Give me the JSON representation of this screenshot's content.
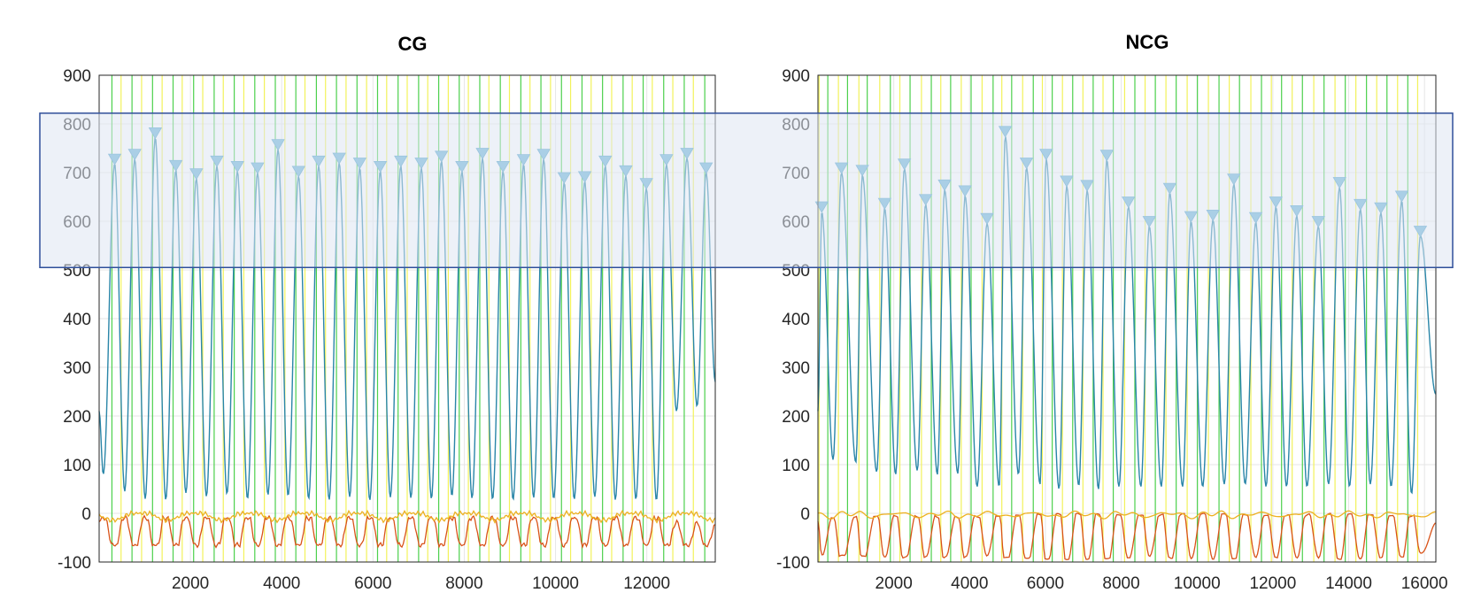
{
  "chart_data": [
    {
      "type": "line",
      "title": "CG",
      "xlabel": "",
      "ylabel": "",
      "xlim": [
        0,
        13500
      ],
      "ylim": [
        -100,
        900
      ],
      "xticks": [
        2000,
        4000,
        6000,
        8000,
        10000,
        12000
      ],
      "yticks": [
        -100,
        0,
        100,
        200,
        300,
        400,
        500,
        600,
        700,
        800,
        900
      ],
      "grid": true,
      "legend": "none",
      "peaks": {
        "x": [
          340,
          780,
          1230,
          1680,
          2130,
          2580,
          3030,
          3470,
          3920,
          4370,
          4810,
          5260,
          5710,
          6160,
          6610,
          7060,
          7500,
          7950,
          8400,
          8850,
          9300,
          9740,
          10190,
          10640,
          11090,
          11540,
          11990,
          12430,
          12880,
          13300
        ],
        "y": [
          718,
          728,
          772,
          705,
          688,
          714,
          703,
          700,
          748,
          693,
          714,
          720,
          710,
          703,
          714,
          710,
          724,
          703,
          730,
          703,
          717,
          728,
          680,
          682,
          714,
          694,
          668,
          717,
          730,
          700
        ]
      },
      "troughs": {
        "x": [
          90,
          560,
          1010,
          1460,
          1900,
          2350,
          2800,
          3250,
          3700,
          4140,
          4590,
          5040,
          5490,
          5930,
          6380,
          6830,
          7280,
          7730,
          8170,
          8620,
          9070,
          9520,
          9960,
          10410,
          10860,
          11310,
          11760,
          12210,
          12650,
          13100
        ],
        "y": [
          80,
          45,
          30,
          28,
          42,
          35,
          40,
          30,
          38,
          36,
          30,
          28,
          34,
          27,
          33,
          32,
          30,
          36,
          31,
          29,
          28,
          32,
          30,
          29,
          34,
          28,
          29,
          27,
          210,
          220
        ]
      },
      "end_value": 270,
      "secondary_series": [
        {
          "color": "#d95319",
          "baseline": -10,
          "min": -65
        },
        {
          "color": "#edb120",
          "baseline": 0,
          "min": -20
        }
      ],
      "event_markers": {
        "green_x": [
          280,
          720,
          1170,
          1620,
          2070,
          2520,
          2960,
          3410,
          3860,
          4310,
          4760,
          5200,
          5650,
          6100,
          6550,
          7000,
          7440,
          7890,
          8340,
          8790,
          9240,
          9680,
          10130,
          10580,
          11030,
          11480,
          11920,
          12370,
          12820,
          13270
        ],
        "yellow_x": [
          480,
          930,
          1380,
          1820,
          2270,
          2720,
          3170,
          3620,
          4070,
          4510,
          4960,
          5410,
          5860,
          6300,
          6750,
          7200,
          7650,
          8090,
          8540,
          8990,
          9440,
          9890,
          10330,
          10780,
          11230,
          11680,
          12120,
          12570,
          13020
        ]
      }
    },
    {
      "type": "line",
      "title": "NCG",
      "xlabel": "",
      "ylabel": "",
      "xlim": [
        0,
        16300
      ],
      "ylim": [
        -100,
        900
      ],
      "xticks": [
        2000,
        4000,
        6000,
        8000,
        10000,
        12000,
        14000,
        16000
      ],
      "yticks": [
        -100,
        0,
        100,
        200,
        300,
        400,
        500,
        600,
        700,
        800,
        900
      ],
      "grid": true,
      "legend": "none",
      "peaks": {
        "x": [
          100,
          620,
          1170,
          1760,
          2280,
          2840,
          3340,
          3880,
          4460,
          4940,
          5500,
          6020,
          6560,
          7100,
          7620,
          8190,
          8740,
          9280,
          9840,
          10420,
          10970,
          11550,
          12080,
          12630,
          13200,
          13760,
          14310,
          14850,
          15400,
          15890
        ],
        "y": [
          620,
          700,
          695,
          627,
          708,
          635,
          665,
          653,
          596,
          775,
          710,
          728,
          673,
          664,
          726,
          630,
          590,
          658,
          600,
          603,
          677,
          598,
          630,
          612,
          590,
          670,
          625,
          618,
          642,
          570
        ]
      },
      "troughs": {
        "x": [
          400,
          1000,
          1550,
          2050,
          2620,
          3150,
          3690,
          4200,
          4780,
          5290,
          5860,
          6360,
          6880,
          7400,
          7940,
          8520,
          9060,
          9620,
          10150,
          10720,
          11270,
          11820,
          12360,
          12900,
          13470,
          14020,
          14570,
          15120,
          15660
        ],
        "y": [
          110,
          105,
          85,
          80,
          88,
          80,
          82,
          55,
          55,
          80,
          60,
          50,
          57,
          50,
          55,
          55,
          55,
          55,
          55,
          60,
          60,
          55,
          55,
          55,
          60,
          55,
          60,
          55,
          40
        ]
      },
      "end_value": 245,
      "secondary_series": [
        {
          "color": "#d95319",
          "baseline": -5,
          "min": -90
        },
        {
          "color": "#edb120",
          "baseline": 0,
          "min": -10
        }
      ],
      "event_markers": {
        "green_x": [
          260,
          780,
          1300,
          1910,
          2430,
          2990,
          3500,
          4040,
          4620,
          5110,
          5680,
          6180,
          6720,
          7260,
          7790,
          8360,
          8900,
          9450,
          10010,
          10580,
          11120,
          11700,
          12230,
          12780,
          13350,
          13910,
          14470,
          15010,
          15560
        ],
        "yellow_x": [
          30,
          540,
          1080,
          1630,
          2160,
          2730,
          3240,
          3780,
          4330,
          4850,
          5400,
          5920,
          6450,
          6990,
          7520,
          8090,
          8630,
          9180,
          9740,
          10300,
          10850,
          11420,
          11960,
          12510,
          13080,
          13640,
          14190,
          14740,
          15290,
          15820
        ]
      }
    }
  ],
  "colors": {
    "main_line": "#2a86a8",
    "peak_marker": "#6ab4d8",
    "green_marker": "#4cd04c",
    "yellow_marker": "#f2f25a",
    "highlight_fill": "#dfe6f3",
    "highlight_stroke": "#2f4f9a",
    "grid": "#e6e6e6",
    "axis": "#262626"
  }
}
